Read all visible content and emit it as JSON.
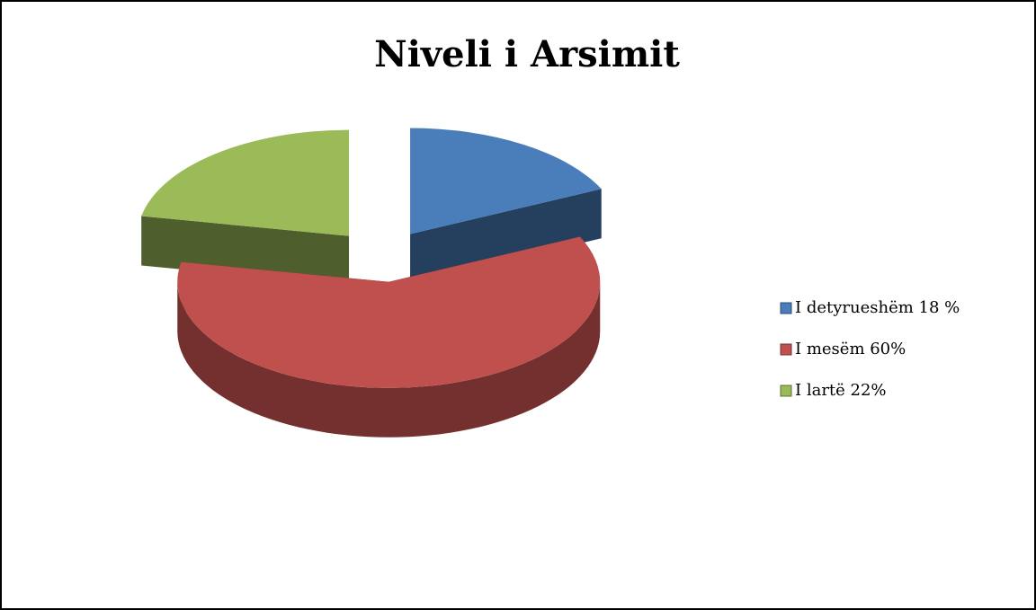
{
  "chart_data": {
    "type": "pie",
    "title": "Niveli i Arsimit",
    "categories": [
      "I detyrueshëm 18 %",
      "I mesëm 60%",
      "I lartë 22%"
    ],
    "values": [
      18,
      60,
      22
    ],
    "colors": [
      "#4a7ebb",
      "#c0504d",
      "#9bbb59"
    ],
    "legend": "right"
  }
}
